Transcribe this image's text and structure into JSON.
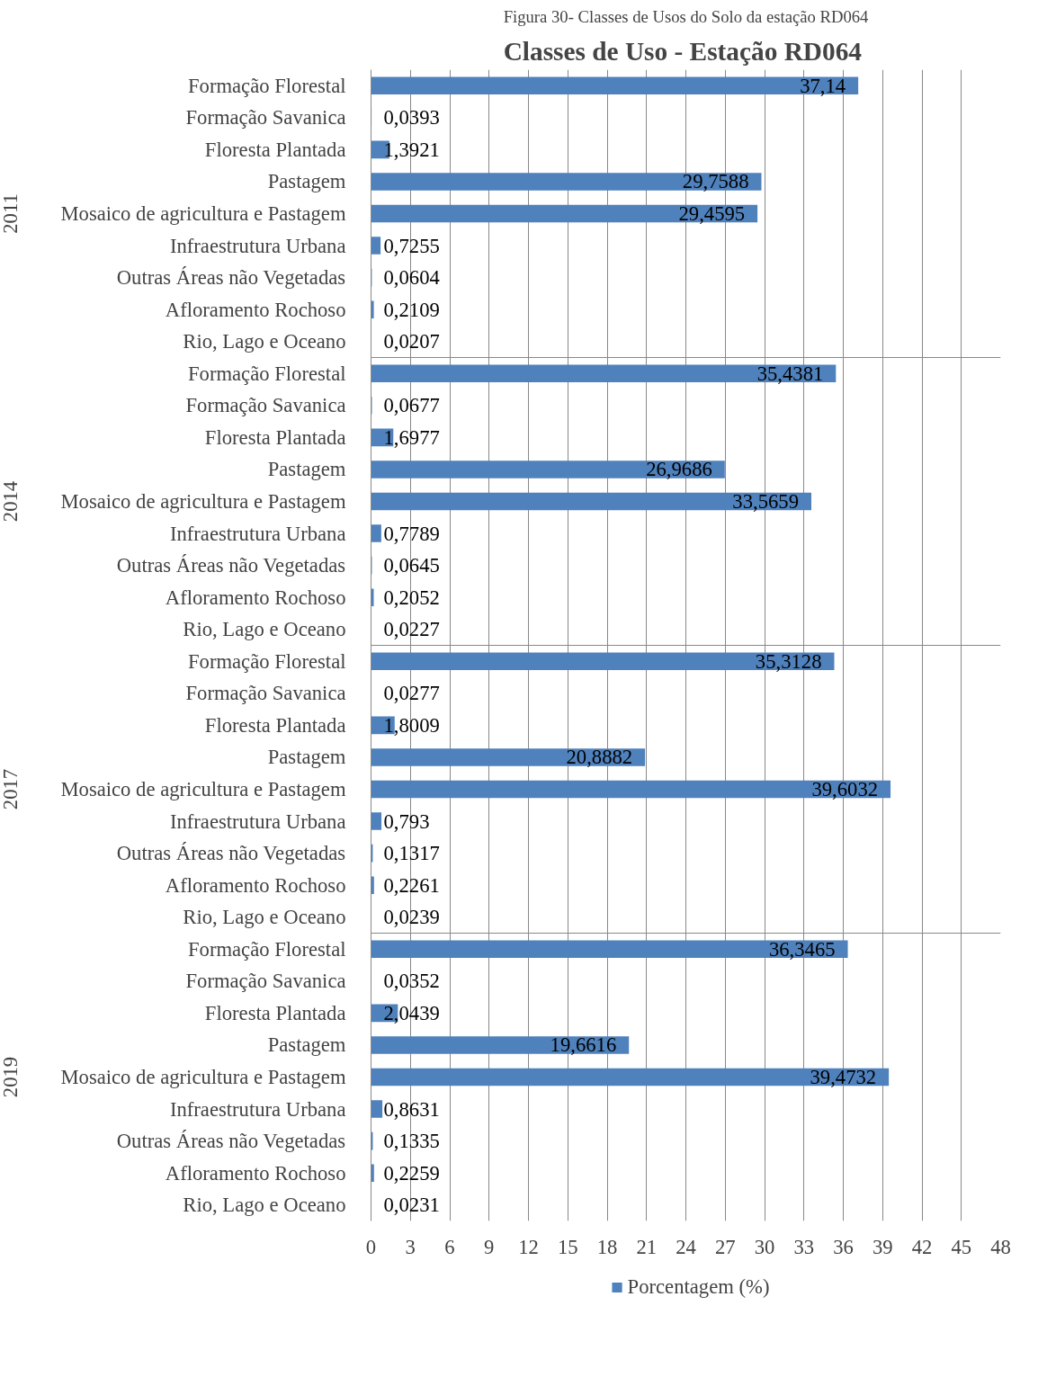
{
  "chart_data": {
    "type": "bar",
    "orientation": "horizontal",
    "title": "Classes de Uso  - Estação RD064",
    "subtitle": "Figura 30- Classes de Usos do Solo da estação RD064",
    "categories": [
      "Formação Florestal",
      "Formação Savanica",
      "Floresta Plantada",
      "Pastagem",
      "Mosaico de agricultura e Pastagem",
      "Infraestrutura Urbana",
      "Outras Áreas não Vegetadas",
      "Afloramento Rochoso",
      "Rio, Lago e Oceano",
      "Formação Florestal",
      "Formação Savanica",
      "Floresta Plantada",
      "Pastagem",
      "Mosaico de agricultura e Pastagem",
      "Infraestrutura Urbana",
      "Outras Áreas não Vegetadas",
      "Afloramento Rochoso",
      "Rio, Lago e Oceano",
      "Formação Florestal",
      "Formação Savanica",
      "Floresta Plantada",
      "Pastagem",
      "Mosaico de agricultura e Pastagem",
      "Infraestrutura Urbana",
      "Outras Áreas não Vegetadas",
      "Afloramento Rochoso",
      "Rio, Lago e Oceano",
      "Formação Florestal",
      "Formação Savanica",
      "Floresta Plantada",
      "Pastagem",
      "Mosaico de agricultura e Pastagem",
      "Infraestrutura Urbana",
      "Outras Áreas não Vegetadas",
      "Afloramento Rochoso",
      "Rio, Lago e Oceano"
    ],
    "series": [
      {
        "name": "Porcentagem (%)",
        "color": "#4f81bd",
        "values": [
          37.14,
          0.0393,
          1.3921,
          29.7588,
          29.4595,
          0.7255,
          0.0604,
          0.2109,
          0.0207,
          35.4381,
          0.0677,
          1.6977,
          26.9686,
          33.5659,
          0.7789,
          0.0645,
          0.2052,
          0.0227,
          35.3128,
          0.0277,
          1.8009,
          20.8882,
          39.6032,
          0.793,
          0.1317,
          0.2261,
          0.0239,
          36.3465,
          0.0352,
          2.0439,
          19.6616,
          39.4732,
          0.8631,
          0.1335,
          0.2259,
          0.0231
        ],
        "value_labels": [
          "37,14",
          "0,0393",
          "1,3921",
          "29,7588",
          "29,4595",
          "0,7255",
          "0,0604",
          "0,2109",
          "0,0207",
          "35,4381",
          "0,0677",
          "1,6977",
          "26,9686",
          "33,5659",
          "0,7789",
          "0,0645",
          "0,2052",
          "0,0227",
          "35,3128",
          "0,0277",
          "1,8009",
          "20,8882",
          "39,6032",
          "0,793",
          "0,1317",
          "0,2261",
          "0,0239",
          "36,3465",
          "0,0352",
          "2,0439",
          "19,6616",
          "39,4732",
          "0,8631",
          "0,1335",
          "0,2259",
          "0,0231"
        ]
      }
    ],
    "annotations": [
      "2011",
      "2014",
      "2017",
      "2019"
    ],
    "xlim": [
      0,
      48
    ],
    "xticks": [
      0,
      3,
      6,
      9,
      12,
      15,
      18,
      21,
      24,
      27,
      30,
      33,
      36,
      39,
      42,
      45,
      48
    ],
    "grid": "x",
    "legend": "bottom"
  }
}
